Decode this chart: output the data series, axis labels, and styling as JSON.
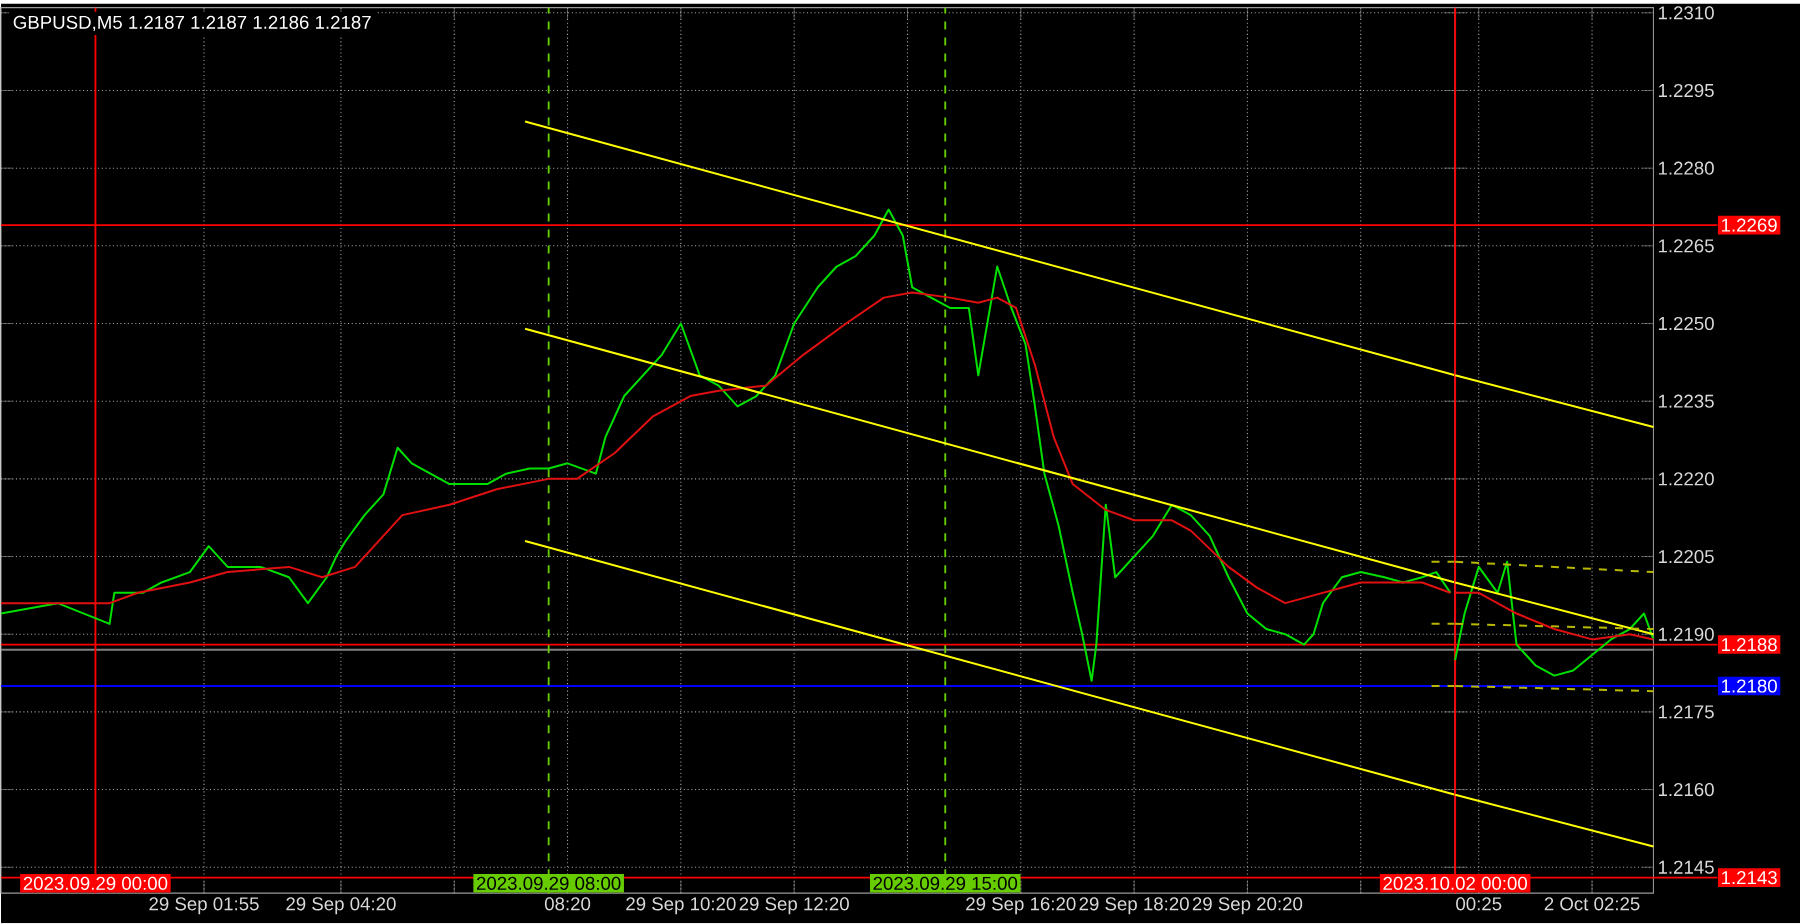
{
  "chart_data": [
    {
      "type": "line",
      "title": "GBPUSD,M5  1.2187 1.2187 1.2186 1.2187",
      "tick_labels": "x",
      "xlim": [
        "2023-09-28T22:20",
        "2023-09-30T00:00"
      ],
      "ylim": [
        1.214,
        1.2311
      ],
      "xticks": [
        {
          "value": "2023-09-29T01:55",
          "label": "29 Sep 01:55"
        },
        {
          "value": "2023-09-29T04:20",
          "label": "29 Sep 04:20"
        },
        {
          "value": "2023-09-29T06:20",
          "label": null
        },
        {
          "value": "2023-09-29T08:20",
          "label": "08:20"
        },
        {
          "value": "2023-09-29T10:20",
          "label": "29 Sep 10:20"
        },
        {
          "value": "2023-09-29T12:20",
          "label": "29 Sep 12:20"
        },
        {
          "value": "2023-09-29T14:20",
          "label": null
        },
        {
          "value": "2023-09-29T16:20",
          "label": "29 Sep 16:20"
        },
        {
          "value": "2023-09-29T18:20",
          "label": "29 Sep 18:20"
        },
        {
          "value": "2023-09-29T20:20",
          "label": "29 Sep 20:20"
        },
        {
          "value": "2023-09-29T22:20",
          "label": null
        }
      ],
      "yticks": [
        1.2145,
        1.216,
        1.2175,
        1.219,
        1.2205,
        1.222,
        1.2235,
        1.225,
        1.2265,
        1.228,
        1.2295,
        1.231
      ],
      "grid": true,
      "series": [
        {
          "color": "#00e000",
          "x": [
            "2023-09-28T22:20",
            "2023-09-28T23:20",
            "2023-09-29T00:15",
            "2023-09-29T00:20",
            "2023-09-29T00:50",
            "2023-09-29T01:10",
            "2023-09-29T01:40",
            "2023-09-29T02:00",
            "2023-09-29T02:20",
            "2023-09-29T02:55",
            "2023-09-29T03:25",
            "2023-09-29T03:45",
            "2023-09-29T04:05",
            "2023-09-29T04:15",
            "2023-09-29T04:25",
            "2023-09-29T04:45",
            "2023-09-29T05:05",
            "2023-09-29T05:20",
            "2023-09-29T05:35",
            "2023-09-29T05:55",
            "2023-09-29T06:15",
            "2023-09-29T06:35",
            "2023-09-29T06:55",
            "2023-09-29T07:15",
            "2023-09-29T07:40",
            "2023-09-29T08:00",
            "2023-09-29T08:20",
            "2023-09-29T08:50",
            "2023-09-29T09:00",
            "2023-09-29T09:20",
            "2023-09-29T09:40",
            "2023-09-29T10:00",
            "2023-09-29T10:20",
            "2023-09-29T10:40",
            "2023-09-29T11:00",
            "2023-09-29T11:20",
            "2023-09-29T11:40",
            "2023-09-29T12:00",
            "2023-09-29T12:20",
            "2023-09-29T12:45",
            "2023-09-29T13:05",
            "2023-09-29T13:25",
            "2023-09-29T13:45",
            "2023-09-29T14:00",
            "2023-09-29T14:15",
            "2023-09-29T14:25",
            "2023-09-29T14:45",
            "2023-09-29T15:05",
            "2023-09-29T15:25",
            "2023-09-29T15:35",
            "2023-09-29T15:55",
            "2023-09-29T16:10",
            "2023-09-29T16:25",
            "2023-09-29T16:35",
            "2023-09-29T16:45",
            "2023-09-29T17:00",
            "2023-09-29T17:15",
            "2023-09-29T17:25",
            "2023-09-29T17:35",
            "2023-09-29T17:40",
            "2023-09-29T17:50",
            "2023-09-29T18:00",
            "2023-09-29T18:20",
            "2023-09-29T18:40",
            "2023-09-29T19:00",
            "2023-09-29T19:20",
            "2023-09-29T19:40",
            "2023-09-29T20:00",
            "2023-09-29T20:20",
            "2023-09-29T20:40",
            "2023-09-29T21:00",
            "2023-09-29T21:20",
            "2023-09-29T21:30",
            "2023-09-29T21:40",
            "2023-09-29T22:00",
            "2023-09-29T22:20",
            "2023-09-29T22:45",
            "2023-09-29T23:05",
            "2023-09-29T23:25",
            "2023-09-29T23:40",
            "2023-09-29T23:55"
          ],
          "values": [
            1.2194,
            1.2196,
            1.2192,
            1.2198,
            1.2198,
            1.22,
            1.2202,
            1.2207,
            1.2203,
            1.2203,
            1.2201,
            1.2196,
            1.2201,
            1.2205,
            1.2208,
            1.2213,
            1.2217,
            1.2226,
            1.2223,
            1.2221,
            1.2219,
            1.2219,
            1.2219,
            1.2221,
            1.2222,
            1.2222,
            1.2223,
            1.2221,
            1.2228,
            1.2236,
            1.224,
            1.2244,
            1.225,
            1.224,
            1.2238,
            1.2234,
            1.2236,
            1.224,
            1.225,
            1.2257,
            1.2261,
            1.2263,
            1.2267,
            1.2272,
            1.2267,
            1.2257,
            1.2255,
            1.2253,
            1.2253,
            1.224,
            1.2261,
            1.2253,
            1.2246,
            1.2234,
            1.2221,
            1.2211,
            1.2198,
            1.219,
            1.2181,
            1.2188,
            1.2215,
            1.2201,
            1.2205,
            1.2209,
            1.2215,
            1.2213,
            1.2209,
            1.2201,
            1.2194,
            1.2191,
            1.219,
            1.2188,
            1.219,
            1.2196,
            1.2201,
            1.2202,
            1.2201,
            1.22,
            1.2201,
            1.2202,
            1.2198
          ]
        },
        {
          "color": "#e01010",
          "x": [
            "2023-09-28T22:20",
            "2023-09-28T23:20",
            "2023-09-29T00:15",
            "2023-09-29T00:45",
            "2023-09-29T01:40",
            "2023-09-29T02:20",
            "2023-09-29T03:25",
            "2023-09-29T04:00",
            "2023-09-29T04:35",
            "2023-09-29T05:25",
            "2023-09-29T06:15",
            "2023-09-29T07:05",
            "2023-09-29T08:00",
            "2023-09-29T08:30",
            "2023-09-29T09:10",
            "2023-09-29T09:50",
            "2023-09-29T10:30",
            "2023-09-29T11:00",
            "2023-09-29T11:50",
            "2023-09-29T12:30",
            "2023-09-29T13:15",
            "2023-09-29T13:55",
            "2023-09-29T14:25",
            "2023-09-29T15:05",
            "2023-09-29T15:35",
            "2023-09-29T15:55",
            "2023-09-29T16:15",
            "2023-09-29T16:35",
            "2023-09-29T16:55",
            "2023-09-29T17:15",
            "2023-09-29T17:50",
            "2023-09-29T18:20",
            "2023-09-29T19:00",
            "2023-09-29T19:20",
            "2023-09-29T20:00",
            "2023-09-29T20:30",
            "2023-09-29T21:00",
            "2023-09-29T21:40",
            "2023-09-29T22:20",
            "2023-09-29T23:25",
            "2023-09-29T23:55"
          ],
          "values": [
            1.2196,
            1.2196,
            1.2196,
            1.2198,
            1.22,
            1.2202,
            1.2203,
            1.2201,
            1.2203,
            1.2213,
            1.2215,
            1.2218,
            1.222,
            1.222,
            1.2225,
            1.2232,
            1.2236,
            1.2237,
            1.2238,
            1.2244,
            1.225,
            1.2255,
            1.2256,
            1.2255,
            1.2254,
            1.2255,
            1.2253,
            1.2242,
            1.2228,
            1.2219,
            1.2214,
            1.2212,
            1.2212,
            1.221,
            1.2203,
            1.2199,
            1.2196,
            1.2198,
            1.22,
            1.22,
            1.2198
          ]
        },
        {
          "color": "#ffff00",
          "x": [
            "2023-09-29T07:35",
            "2023-09-30T00:00"
          ],
          "values": [
            1.2289,
            1.224
          ]
        },
        {
          "color": "#ffff00",
          "x": [
            "2023-09-29T07:35",
            "2023-09-30T00:00"
          ],
          "values": [
            1.2249,
            1.22
          ]
        },
        {
          "color": "#ffff00",
          "x": [
            "2023-09-29T07:35",
            "2023-09-30T00:00"
          ],
          "values": [
            1.2208,
            1.2159
          ]
        },
        {
          "color": "#b8b800",
          "line_style": "dashed",
          "x": [
            "2023-09-29T23:35",
            "2023-09-30T00:00"
          ],
          "values": [
            1.2204,
            1.2204
          ]
        },
        {
          "color": "#b8b800",
          "line_style": "dashed",
          "x": [
            "2023-09-29T23:35",
            "2023-09-30T00:00"
          ],
          "values": [
            1.2192,
            1.2192
          ]
        },
        {
          "color": "#b8b800",
          "line_style": "dashed",
          "x": [
            "2023-09-29T23:35",
            "2023-09-30T00:00"
          ],
          "values": [
            1.218,
            1.218
          ]
        }
      ],
      "ref_lines": [
        {
          "axis": "y",
          "value": 1.2269,
          "color": "#ff0000"
        },
        {
          "axis": "y",
          "value": 1.2188,
          "color": "#ff0000"
        },
        {
          "axis": "y",
          "value": 1.2187,
          "color": "#808080"
        },
        {
          "axis": "y",
          "value": 1.218,
          "color": "#0000ff"
        },
        {
          "axis": "y",
          "value": 1.2143,
          "color": "#ff0000"
        },
        {
          "axis": "x",
          "value": "2023-09-29T00:00",
          "label": "2023.09.29 00:00",
          "color": "#ff0000"
        },
        {
          "axis": "x",
          "value": "2023-09-29T08:00",
          "label": "2023.09.29 08:00",
          "color": "#66cc00",
          "line_style": "dashed"
        },
        {
          "axis": "x",
          "value": "2023-09-29T15:00",
          "label": "2023.09.29 15:00",
          "color": "#66cc00",
          "line_style": "dashed"
        }
      ]
    },
    {
      "type": "line",
      "xlim": [
        "2023-10-02T00:00",
        "2023-10-02T03:30"
      ],
      "ylim": [
        1.214,
        1.2311
      ],
      "xticks": [
        {
          "value": "2023-10-02T00:25",
          "label": "00:25"
        },
        {
          "value": "2023-10-02T02:25",
          "label": "2 Oct 02:25"
        }
      ],
      "yticks": [
        1.2145,
        {
          "value": 1.216,
          "label": "1.2160"
        },
        1.2175,
        {
          "value": 1.219,
          "label": "1.2190"
        },
        1.2205,
        {
          "value": 1.222,
          "label": "1.2220"
        },
        1.2235,
        {
          "value": 1.225,
          "label": "1.2250"
        },
        1.2265,
        {
          "value": 1.228,
          "label": "1.2280"
        },
        1.2295,
        {
          "value": 1.231,
          "label": "1.2310"
        }
      ],
      "grid": true,
      "series": [
        {
          "color": "#00e000",
          "x": [
            "2023-10-02T00:00",
            "2023-10-02T00:10",
            "2023-10-02T00:25",
            "2023-10-02T00:45",
            "2023-10-02T00:55",
            "2023-10-02T01:05",
            "2023-10-02T01:25",
            "2023-10-02T01:45",
            "2023-10-02T02:05",
            "2023-10-02T02:25",
            "2023-10-02T02:45",
            "2023-10-02T03:05",
            "2023-10-02T03:20",
            "2023-10-02T03:30"
          ],
          "values": [
            1.2185,
            1.2194,
            1.2203,
            1.2198,
            1.2204,
            1.2188,
            1.2184,
            1.2182,
            1.2183,
            1.2186,
            1.2189,
            1.2191,
            1.2194,
            1.2189
          ]
        },
        {
          "color": "#e01010",
          "x": [
            "2023-10-02T00:00",
            "2023-10-02T00:25",
            "2023-10-02T01:05",
            "2023-10-02T01:45",
            "2023-10-02T02:25",
            "2023-10-02T03:05",
            "2023-10-02T03:30"
          ],
          "values": [
            1.2198,
            1.2198,
            1.2194,
            1.2191,
            1.2189,
            1.219,
            1.2189
          ]
        },
        {
          "color": "#ffff00",
          "x": [
            "2023-10-02T00:00",
            "2023-10-02T03:30"
          ],
          "values": [
            1.224,
            1.223
          ]
        },
        {
          "color": "#ffff00",
          "x": [
            "2023-10-02T00:00",
            "2023-10-02T03:30"
          ],
          "values": [
            1.22,
            1.219
          ]
        },
        {
          "color": "#ffff00",
          "x": [
            "2023-10-02T00:00",
            "2023-10-02T03:30"
          ],
          "values": [
            1.2159,
            1.2149
          ]
        },
        {
          "color": "#b8b800",
          "line_style": "dashed",
          "x": [
            "2023-10-02T00:00",
            "2023-10-02T03:30"
          ],
          "values": [
            1.2204,
            1.2202
          ]
        },
        {
          "color": "#b8b800",
          "line_style": "dashed",
          "x": [
            "2023-10-02T00:00",
            "2023-10-02T03:30"
          ],
          "values": [
            1.2192,
            1.2191
          ]
        },
        {
          "color": "#b8b800",
          "line_style": "dashed",
          "x": [
            "2023-10-02T00:00",
            "2023-10-02T03:30"
          ],
          "values": [
            1.218,
            1.2179
          ]
        }
      ],
      "ref_lines": [
        {
          "axis": "y",
          "value": 1.2269,
          "label": "1.2269",
          "color": "#ff0000"
        },
        {
          "axis": "y",
          "value": 1.2188,
          "label": "1.2188",
          "color": "#ff0000"
        },
        {
          "axis": "y",
          "value": 1.2187,
          "color": "#808080"
        },
        {
          "axis": "y",
          "value": 1.218,
          "label": "1.2180",
          "color": "#0000ff"
        },
        {
          "axis": "y",
          "value": 1.2143,
          "label": "1.2143",
          "color": "#ff0000"
        },
        {
          "axis": "x",
          "value": "2023-10-02T00:00",
          "label": "2023.10.02 00:00",
          "color": "#ff0000"
        }
      ]
    }
  ]
}
